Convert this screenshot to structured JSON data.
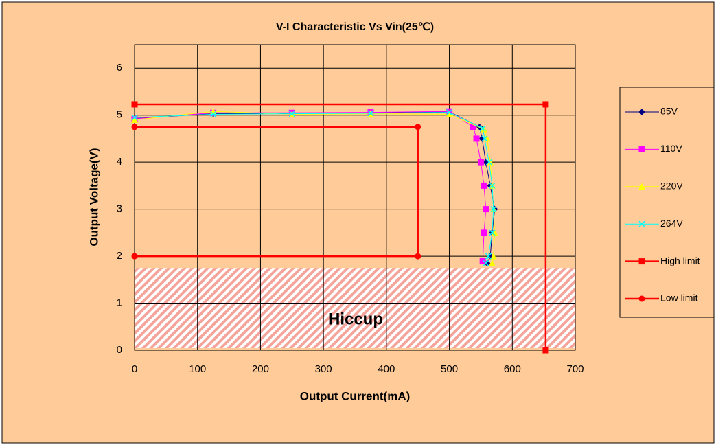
{
  "chart_data": {
    "type": "line",
    "title": "V-I Characteristic Vs Vin(25℃)",
    "x_label": "Output Current(mA)",
    "y_label": "Output Voltage(V)",
    "xlim": [
      0,
      700
    ],
    "xticks": [
      0,
      100,
      200,
      300,
      400,
      500,
      600,
      700
    ],
    "ylim": [
      0,
      6.5
    ],
    "yticks": [
      0,
      1,
      2,
      3,
      4,
      5,
      6
    ],
    "grid": true,
    "legend": "right",
    "shaded_region": {
      "label": "Hiccup",
      "x": [
        0,
        700
      ],
      "y": [
        0,
        1.75
      ]
    },
    "series": [
      {
        "name": "85V",
        "color": "#000080",
        "marker": "diamond",
        "x": [
          0,
          125,
          250,
          375,
          500,
          548,
          552,
          558,
          565,
          572,
          568,
          565,
          560
        ],
        "values": [
          4.93,
          5.03,
          5.04,
          5.05,
          5.07,
          4.75,
          4.5,
          4,
          3.5,
          3,
          2.5,
          2,
          1.85
        ]
      },
      {
        "name": "110V",
        "color": "#FF00FF",
        "marker": "square",
        "x": [
          0,
          125,
          250,
          375,
          500,
          538,
          543,
          550,
          555,
          558,
          555,
          553
        ],
        "values": [
          4.92,
          5.05,
          5.05,
          5.06,
          5.08,
          4.75,
          4.5,
          4,
          3.5,
          3,
          2.5,
          1.9
        ]
      },
      {
        "name": "220V",
        "color": "#FFFF00",
        "marker": "triangle",
        "x": [
          0,
          125,
          250,
          375,
          500,
          555,
          560,
          565,
          568,
          570,
          572,
          570,
          568
        ],
        "values": [
          4.9,
          5.08,
          5.02,
          5.03,
          5.02,
          4.7,
          4.5,
          4,
          3.5,
          3,
          2.5,
          2,
          1.85
        ]
      },
      {
        "name": "264V",
        "color": "#00FFFF",
        "marker": "x",
        "x": [
          0,
          125,
          250,
          375,
          500,
          553,
          556,
          563,
          568,
          570,
          568,
          562,
          558
        ],
        "values": [
          4.95,
          5.02,
          5.03,
          5.04,
          5.06,
          4.72,
          4.5,
          4,
          3.5,
          3,
          2.5,
          2,
          1.85
        ]
      },
      {
        "name": "High limit",
        "color": "#FF0000",
        "marker": "square",
        "x": [
          0,
          653,
          653
        ],
        "values": [
          5.23,
          5.23,
          0
        ]
      },
      {
        "name": "Low limit",
        "color": "#FF0000",
        "marker": "circle",
        "x": [
          0,
          450,
          450,
          0
        ],
        "values": [
          4.75,
          4.75,
          2,
          2
        ]
      }
    ]
  }
}
